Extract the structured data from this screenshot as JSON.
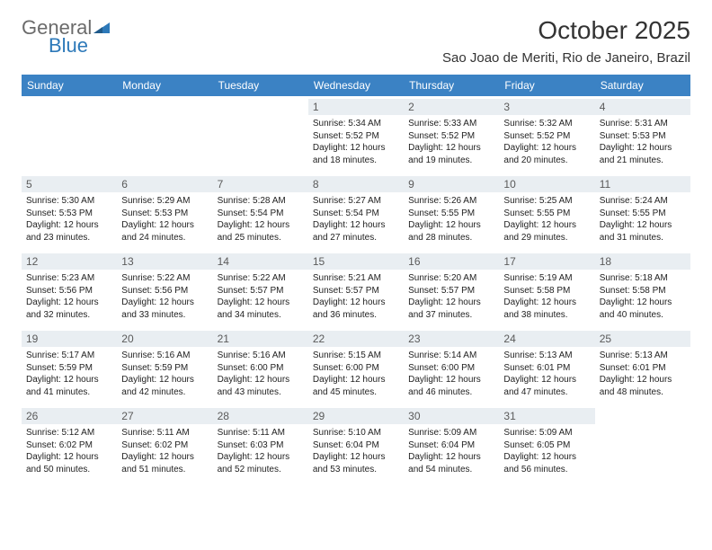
{
  "logo": {
    "text1": "General",
    "text2": "Blue",
    "text1_color": "#6b6b6b",
    "text2_color": "#2d79b9",
    "icon_color": "#2d79b9"
  },
  "title": "October 2025",
  "subtitle": "Sao Joao de Meriti, Rio de Janeiro, Brazil",
  "colors": {
    "header_bg": "#3b82c4",
    "header_text": "#ffffff",
    "daynum_bg": "#e9eef2",
    "daynum_text": "#5a5a5a",
    "body_text": "#222222",
    "page_bg": "#ffffff"
  },
  "fonts": {
    "title_size": 28,
    "subtitle_size": 15,
    "weekday_size": 12,
    "daynum_size": 12,
    "info_size": 10,
    "family": "Arial"
  },
  "layout": {
    "columns": 7,
    "rows": 5,
    "cell_min_height": 86
  },
  "weekdays": [
    "Sunday",
    "Monday",
    "Tuesday",
    "Wednesday",
    "Thursday",
    "Friday",
    "Saturday"
  ],
  "weeks": [
    [
      {
        "day": "",
        "sunrise": "",
        "sunset": "",
        "daylight": ""
      },
      {
        "day": "",
        "sunrise": "",
        "sunset": "",
        "daylight": ""
      },
      {
        "day": "",
        "sunrise": "",
        "sunset": "",
        "daylight": ""
      },
      {
        "day": "1",
        "sunrise": "Sunrise: 5:34 AM",
        "sunset": "Sunset: 5:52 PM",
        "daylight": "Daylight: 12 hours and 18 minutes."
      },
      {
        "day": "2",
        "sunrise": "Sunrise: 5:33 AM",
        "sunset": "Sunset: 5:52 PM",
        "daylight": "Daylight: 12 hours and 19 minutes."
      },
      {
        "day": "3",
        "sunrise": "Sunrise: 5:32 AM",
        "sunset": "Sunset: 5:52 PM",
        "daylight": "Daylight: 12 hours and 20 minutes."
      },
      {
        "day": "4",
        "sunrise": "Sunrise: 5:31 AM",
        "sunset": "Sunset: 5:53 PM",
        "daylight": "Daylight: 12 hours and 21 minutes."
      }
    ],
    [
      {
        "day": "5",
        "sunrise": "Sunrise: 5:30 AM",
        "sunset": "Sunset: 5:53 PM",
        "daylight": "Daylight: 12 hours and 23 minutes."
      },
      {
        "day": "6",
        "sunrise": "Sunrise: 5:29 AM",
        "sunset": "Sunset: 5:53 PM",
        "daylight": "Daylight: 12 hours and 24 minutes."
      },
      {
        "day": "7",
        "sunrise": "Sunrise: 5:28 AM",
        "sunset": "Sunset: 5:54 PM",
        "daylight": "Daylight: 12 hours and 25 minutes."
      },
      {
        "day": "8",
        "sunrise": "Sunrise: 5:27 AM",
        "sunset": "Sunset: 5:54 PM",
        "daylight": "Daylight: 12 hours and 27 minutes."
      },
      {
        "day": "9",
        "sunrise": "Sunrise: 5:26 AM",
        "sunset": "Sunset: 5:55 PM",
        "daylight": "Daylight: 12 hours and 28 minutes."
      },
      {
        "day": "10",
        "sunrise": "Sunrise: 5:25 AM",
        "sunset": "Sunset: 5:55 PM",
        "daylight": "Daylight: 12 hours and 29 minutes."
      },
      {
        "day": "11",
        "sunrise": "Sunrise: 5:24 AM",
        "sunset": "Sunset: 5:55 PM",
        "daylight": "Daylight: 12 hours and 31 minutes."
      }
    ],
    [
      {
        "day": "12",
        "sunrise": "Sunrise: 5:23 AM",
        "sunset": "Sunset: 5:56 PM",
        "daylight": "Daylight: 12 hours and 32 minutes."
      },
      {
        "day": "13",
        "sunrise": "Sunrise: 5:22 AM",
        "sunset": "Sunset: 5:56 PM",
        "daylight": "Daylight: 12 hours and 33 minutes."
      },
      {
        "day": "14",
        "sunrise": "Sunrise: 5:22 AM",
        "sunset": "Sunset: 5:57 PM",
        "daylight": "Daylight: 12 hours and 34 minutes."
      },
      {
        "day": "15",
        "sunrise": "Sunrise: 5:21 AM",
        "sunset": "Sunset: 5:57 PM",
        "daylight": "Daylight: 12 hours and 36 minutes."
      },
      {
        "day": "16",
        "sunrise": "Sunrise: 5:20 AM",
        "sunset": "Sunset: 5:57 PM",
        "daylight": "Daylight: 12 hours and 37 minutes."
      },
      {
        "day": "17",
        "sunrise": "Sunrise: 5:19 AM",
        "sunset": "Sunset: 5:58 PM",
        "daylight": "Daylight: 12 hours and 38 minutes."
      },
      {
        "day": "18",
        "sunrise": "Sunrise: 5:18 AM",
        "sunset": "Sunset: 5:58 PM",
        "daylight": "Daylight: 12 hours and 40 minutes."
      }
    ],
    [
      {
        "day": "19",
        "sunrise": "Sunrise: 5:17 AM",
        "sunset": "Sunset: 5:59 PM",
        "daylight": "Daylight: 12 hours and 41 minutes."
      },
      {
        "day": "20",
        "sunrise": "Sunrise: 5:16 AM",
        "sunset": "Sunset: 5:59 PM",
        "daylight": "Daylight: 12 hours and 42 minutes."
      },
      {
        "day": "21",
        "sunrise": "Sunrise: 5:16 AM",
        "sunset": "Sunset: 6:00 PM",
        "daylight": "Daylight: 12 hours and 43 minutes."
      },
      {
        "day": "22",
        "sunrise": "Sunrise: 5:15 AM",
        "sunset": "Sunset: 6:00 PM",
        "daylight": "Daylight: 12 hours and 45 minutes."
      },
      {
        "day": "23",
        "sunrise": "Sunrise: 5:14 AM",
        "sunset": "Sunset: 6:00 PM",
        "daylight": "Daylight: 12 hours and 46 minutes."
      },
      {
        "day": "24",
        "sunrise": "Sunrise: 5:13 AM",
        "sunset": "Sunset: 6:01 PM",
        "daylight": "Daylight: 12 hours and 47 minutes."
      },
      {
        "day": "25",
        "sunrise": "Sunrise: 5:13 AM",
        "sunset": "Sunset: 6:01 PM",
        "daylight": "Daylight: 12 hours and 48 minutes."
      }
    ],
    [
      {
        "day": "26",
        "sunrise": "Sunrise: 5:12 AM",
        "sunset": "Sunset: 6:02 PM",
        "daylight": "Daylight: 12 hours and 50 minutes."
      },
      {
        "day": "27",
        "sunrise": "Sunrise: 5:11 AM",
        "sunset": "Sunset: 6:02 PM",
        "daylight": "Daylight: 12 hours and 51 minutes."
      },
      {
        "day": "28",
        "sunrise": "Sunrise: 5:11 AM",
        "sunset": "Sunset: 6:03 PM",
        "daylight": "Daylight: 12 hours and 52 minutes."
      },
      {
        "day": "29",
        "sunrise": "Sunrise: 5:10 AM",
        "sunset": "Sunset: 6:04 PM",
        "daylight": "Daylight: 12 hours and 53 minutes."
      },
      {
        "day": "30",
        "sunrise": "Sunrise: 5:09 AM",
        "sunset": "Sunset: 6:04 PM",
        "daylight": "Daylight: 12 hours and 54 minutes."
      },
      {
        "day": "31",
        "sunrise": "Sunrise: 5:09 AM",
        "sunset": "Sunset: 6:05 PM",
        "daylight": "Daylight: 12 hours and 56 minutes."
      },
      {
        "day": "",
        "sunrise": "",
        "sunset": "",
        "daylight": ""
      }
    ]
  ]
}
